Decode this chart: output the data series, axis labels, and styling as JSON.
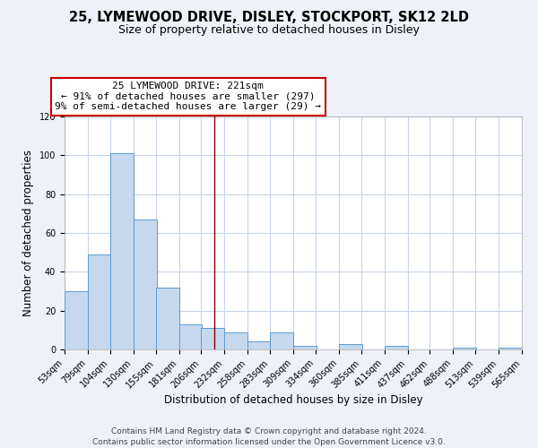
{
  "title": "25, LYMEWOOD DRIVE, DISLEY, STOCKPORT, SK12 2LD",
  "subtitle": "Size of property relative to detached houses in Disley",
  "xlabel": "Distribution of detached houses by size in Disley",
  "ylabel": "Number of detached properties",
  "bins": [
    53,
    79,
    104,
    130,
    155,
    181,
    206,
    232,
    258,
    283,
    309,
    334,
    360,
    385,
    411,
    437,
    462,
    488,
    513,
    539,
    565
  ],
  "values": [
    30,
    49,
    101,
    67,
    32,
    13,
    11,
    9,
    4,
    9,
    2,
    0,
    3,
    0,
    2,
    0,
    0,
    1,
    0,
    1
  ],
  "bar_color": "#c5d8ed",
  "bar_edge_color": "#5b9bd5",
  "property_size": 221,
  "annotation_title": "25 LYMEWOOD DRIVE: 221sqm",
  "annotation_line1": "← 91% of detached houses are smaller (297)",
  "annotation_line2": "9% of semi-detached houses are larger (29) →",
  "annotation_box_color": "#ffffff",
  "annotation_border_color": "#cc0000",
  "vline_color": "#8b0000",
  "ylim": [
    0,
    120
  ],
  "yticks": [
    0,
    20,
    40,
    60,
    80,
    100,
    120
  ],
  "footnote1": "Contains HM Land Registry data © Crown copyright and database right 2024.",
  "footnote2": "Contains public sector information licensed under the Open Government Licence v3.0.",
  "background_color": "#eef2f8",
  "plot_bg_color": "#ffffff",
  "grid_color": "#c8d4e8",
  "title_fontsize": 10.5,
  "subtitle_fontsize": 9,
  "axis_label_fontsize": 8.5,
  "tick_fontsize": 7,
  "annotation_fontsize": 8,
  "footnote_fontsize": 6.5
}
